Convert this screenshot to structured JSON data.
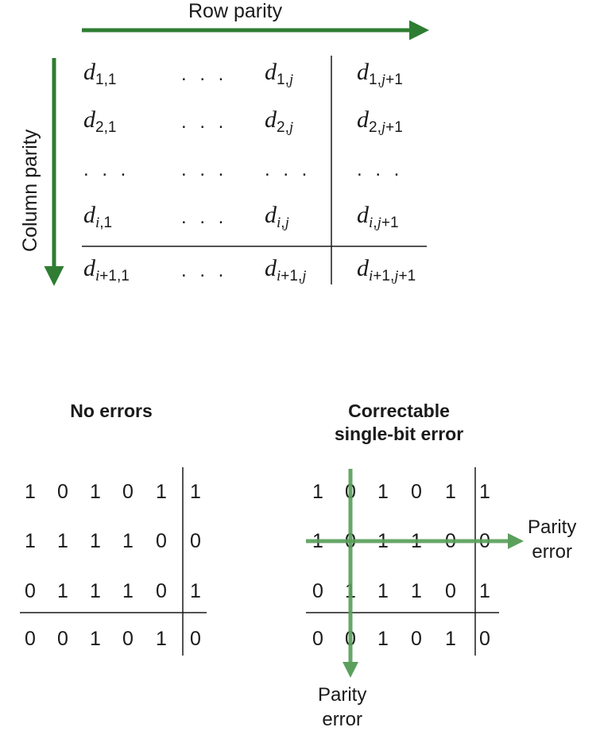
{
  "labels": {
    "row_parity": "Row parity",
    "column_parity": "Column parity"
  },
  "general_matrix": {
    "rows": [
      [
        {
          "base": "d",
          "sub": "1,1"
        },
        {
          "dots": ". . ."
        },
        {
          "base": "d",
          "sub": "1,",
          "sub_var": "j"
        },
        {
          "base": "d",
          "sub": "1,",
          "sub_var": "j",
          "sub_tail": "+1"
        }
      ],
      [
        {
          "base": "d",
          "sub": "2,1"
        },
        {
          "dots": ". . ."
        },
        {
          "base": "d",
          "sub": "2,",
          "sub_var": "j"
        },
        {
          "base": "d",
          "sub": "2,",
          "sub_var": "j",
          "sub_tail": "+1"
        }
      ],
      [
        {
          "dots": ". . ."
        },
        {
          "dots": ". . ."
        },
        {
          "dots": ". . ."
        },
        {
          "dots": ". . ."
        }
      ],
      [
        {
          "base": "d",
          "sub_var": "i",
          "sub": ",1"
        },
        {
          "dots": ". . ."
        },
        {
          "base": "d",
          "sub_var": "i",
          "sub": ",",
          "sub_var2": "j"
        },
        {
          "base": "d",
          "sub_var": "i",
          "sub": ",",
          "sub_var2": "j",
          "sub_tail": "+1"
        }
      ],
      [
        {
          "base": "d",
          "sub_var": "i",
          "sub": "+1,1"
        },
        {
          "dots": ". . ."
        },
        {
          "base": "d",
          "sub_var": "i",
          "sub": "+1,",
          "sub_var2": "j"
        },
        {
          "base": "d",
          "sub_var": "i",
          "sub": "+1,",
          "sub_var2": "j",
          "sub_tail": "+1"
        }
      ]
    ]
  },
  "no_errors": {
    "title": "No errors",
    "bits": [
      [
        "1",
        "0",
        "1",
        "0",
        "1",
        "1"
      ],
      [
        "1",
        "1",
        "1",
        "1",
        "0",
        "0"
      ],
      [
        "0",
        "1",
        "1",
        "1",
        "0",
        "1"
      ],
      [
        "0",
        "0",
        "1",
        "0",
        "1",
        "0"
      ]
    ]
  },
  "correctable": {
    "title_line1": "Correctable",
    "title_line2": "single-bit error",
    "bits": [
      [
        "1",
        "0",
        "1",
        "0",
        "1",
        "1"
      ],
      [
        "1",
        "0",
        "1",
        "1",
        "0",
        "0"
      ],
      [
        "0",
        "1",
        "1",
        "1",
        "0",
        "1"
      ],
      [
        "0",
        "0",
        "1",
        "0",
        "1",
        "0"
      ]
    ],
    "row_error_line1": "Parity",
    "row_error_line2": "error",
    "col_error_line1": "Parity",
    "col_error_line2": "error"
  },
  "colors": {
    "arrow_dark": "#2e7d32",
    "arrow_light": "#5aa05c",
    "text": "#1a1a1a"
  }
}
